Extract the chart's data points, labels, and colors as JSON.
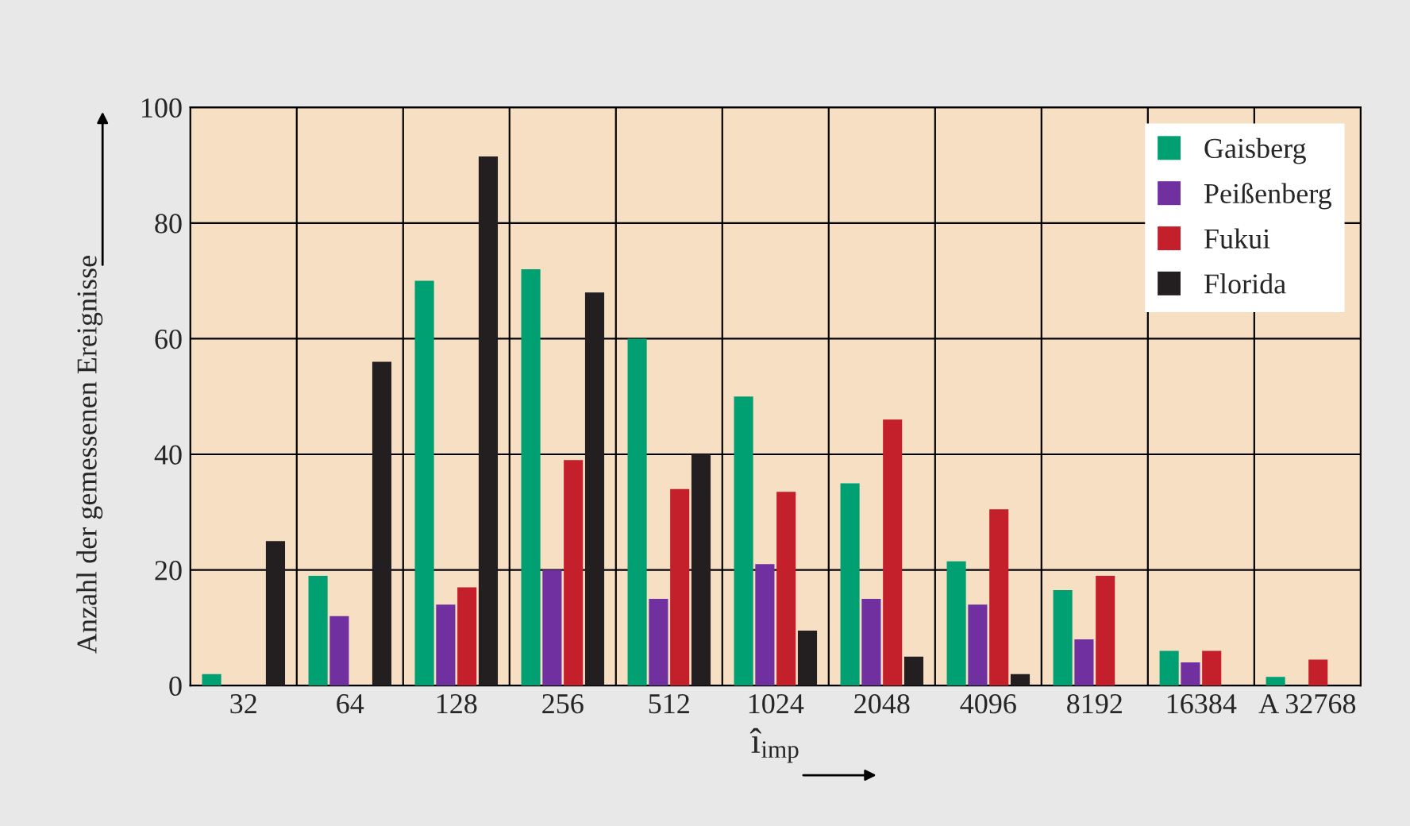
{
  "chart_data": {
    "type": "bar",
    "xlabel": "î$_{imp}$",
    "ylabel": "Anzahl der gemessenen Ereignisse",
    "categories": [
      "32",
      "64",
      "128",
      "256",
      "512",
      "1024",
      "2048",
      "4096",
      "8192",
      "16384",
      "A 32768"
    ],
    "series": [
      {
        "name": "Gaisberg",
        "color": "#00a072",
        "values": [
          2,
          19,
          70,
          72,
          60,
          50,
          35,
          21.5,
          16.5,
          6,
          1.5
        ]
      },
      {
        "name": "Peißenberg",
        "color": "#7030a0",
        "values": [
          0,
          12,
          14,
          20,
          15,
          21,
          15,
          14,
          8,
          4,
          0
        ]
      },
      {
        "name": "Fukui",
        "color": "#c4202b",
        "values": [
          0,
          0,
          17,
          39,
          34,
          33.5,
          46,
          30.5,
          19,
          6,
          4.5
        ]
      },
      {
        "name": "Florida",
        "color": "#231f20",
        "values": [
          25,
          56,
          91.5,
          68,
          40,
          9.5,
          5,
          2,
          0,
          0,
          0
        ]
      }
    ],
    "ylim": [
      0,
      100
    ],
    "yticks": [
      0,
      20,
      40,
      60,
      80,
      100
    ],
    "grid": true,
    "legend": "top right"
  }
}
